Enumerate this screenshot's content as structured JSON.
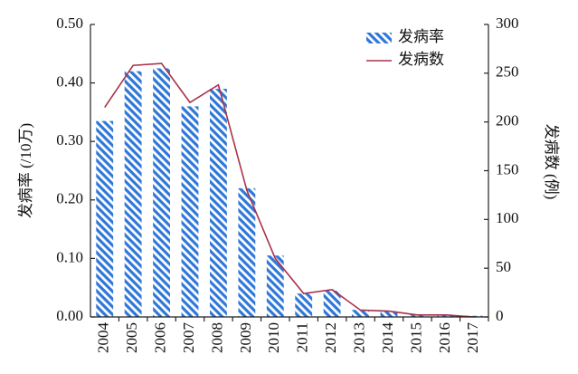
{
  "chart_data": {
    "type": "bar",
    "categories": [
      "2004",
      "2005",
      "2006",
      "2007",
      "2008",
      "2009",
      "2010",
      "2011",
      "2012",
      "2013",
      "2014",
      "2015",
      "2016",
      "2017"
    ],
    "series": [
      {
        "name": "发病率",
        "type": "bar",
        "color": "#2f78d8",
        "values": [
          0.335,
          0.42,
          0.425,
          0.36,
          0.39,
          0.22,
          0.105,
          0.04,
          0.045,
          0.012,
          0.01,
          0.004,
          0.004,
          0.002
        ]
      },
      {
        "name": "发病数",
        "type": "line",
        "axis": "y2",
        "color": "#a8324a",
        "values": [
          215,
          258,
          260,
          220,
          238,
          130,
          60,
          24,
          28,
          7,
          6,
          2,
          2,
          0
        ]
      }
    ],
    "ylabel": "发病率 (/10万)",
    "y2label": "发病数 (例)",
    "ylim": [
      0,
      0.5
    ],
    "yticks": [
      {
        "value": 0,
        "label": "0.00"
      },
      {
        "value": 0.1,
        "label": "0.10"
      },
      {
        "value": 0.2,
        "label": "0.20"
      },
      {
        "value": 0.3,
        "label": "0.30"
      },
      {
        "value": 0.4,
        "label": "0.40"
      },
      {
        "value": 0.5,
        "label": "0.50"
      }
    ],
    "y2lim": [
      0,
      300
    ],
    "y2ticks": [
      0,
      50,
      100,
      150,
      200,
      250,
      300
    ]
  }
}
